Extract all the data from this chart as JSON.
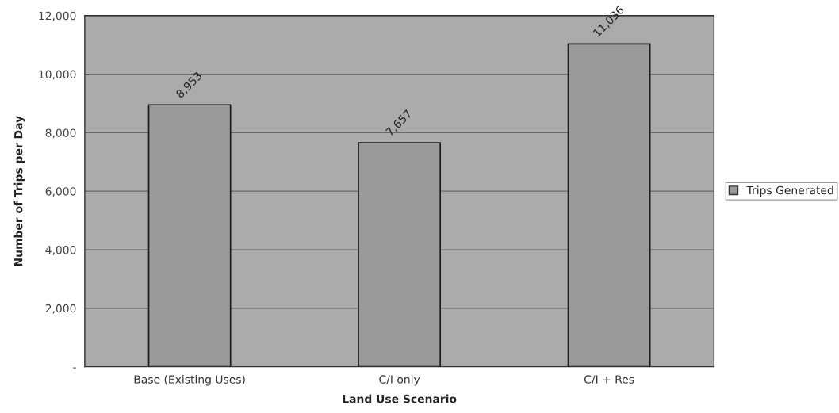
{
  "chart_data": {
    "type": "bar",
    "xlabel": "Land Use Scenario",
    "ylabel": "Number of Trips per Day",
    "categories": [
      "Base (Existing Uses)",
      "C/I only",
      "C/I + Res"
    ],
    "series": [
      {
        "name": "Trips Generated",
        "color": "#9a9a9a",
        "values": [
          8953,
          7657,
          11036
        ],
        "value_labels": [
          "8,953",
          "7,657",
          "11,036"
        ]
      }
    ],
    "ylim": [
      0,
      12000
    ],
    "yticks": [
      {
        "value": 0,
        "label": "-"
      },
      {
        "value": 2000,
        "label": "2,000"
      },
      {
        "value": 4000,
        "label": "4,000"
      },
      {
        "value": 6000,
        "label": "6,000"
      },
      {
        "value": 8000,
        "label": "8,000"
      },
      {
        "value": 10000,
        "label": "10,000"
      },
      {
        "value": 12000,
        "label": "12,000"
      }
    ],
    "grid": "y",
    "legend": "right"
  }
}
